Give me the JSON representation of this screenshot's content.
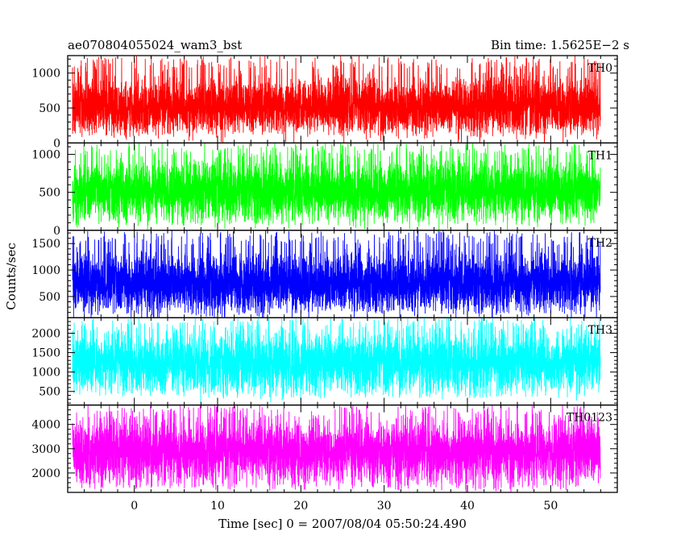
{
  "chart_data": {
    "type": "line",
    "title_left": "ae070804055024_wam3_bst",
    "title_right": "Bin time: 1.5625E−2 s",
    "xlabel": "Time [sec] 0 = 2007/08/04 05:50:24.490",
    "ylabel": "Counts/sec",
    "xlim": [
      -8,
      58
    ],
    "x_data_range": [
      -7.5,
      56
    ],
    "bin_time": 0.015625,
    "x_ticks": [
      0,
      10,
      20,
      30,
      40,
      50
    ],
    "x_minor_step": 2,
    "grid": false,
    "series": [
      {
        "name": "TH0",
        "color": "#ff0000",
        "ylim": [
          0,
          1250
        ],
        "y_ticks": [
          0,
          500,
          1000
        ],
        "y_minor_step": 100,
        "mean": 530,
        "low": 100,
        "high": 1250
      },
      {
        "name": "TH1",
        "color": "#00ff00",
        "ylim": [
          0,
          1150
        ],
        "y_ticks": [
          0,
          500,
          1000
        ],
        "y_minor_step": 100,
        "mean": 520,
        "low": 60,
        "high": 1150
      },
      {
        "name": "TH2",
        "color": "#0000ff",
        "ylim": [
          100,
          1750
        ],
        "y_ticks": [
          500,
          1000,
          1500
        ],
        "y_minor_step": 100,
        "mean": 760,
        "low": 170,
        "high": 1750
      },
      {
        "name": "TH3",
        "color": "#00ffff",
        "ylim": [
          150,
          2400
        ],
        "y_ticks": [
          500,
          1000,
          1500,
          2000
        ],
        "y_minor_step": 100,
        "mean": 1250,
        "low": 330,
        "high": 2400
      },
      {
        "name": "TH0123",
        "color": "#ff00ff",
        "ylim": [
          1200,
          4800
        ],
        "y_ticks": [
          2000,
          3000,
          4000
        ],
        "y_minor_step": 200,
        "mean": 2900,
        "low": 1300,
        "high": 4800
      }
    ]
  }
}
